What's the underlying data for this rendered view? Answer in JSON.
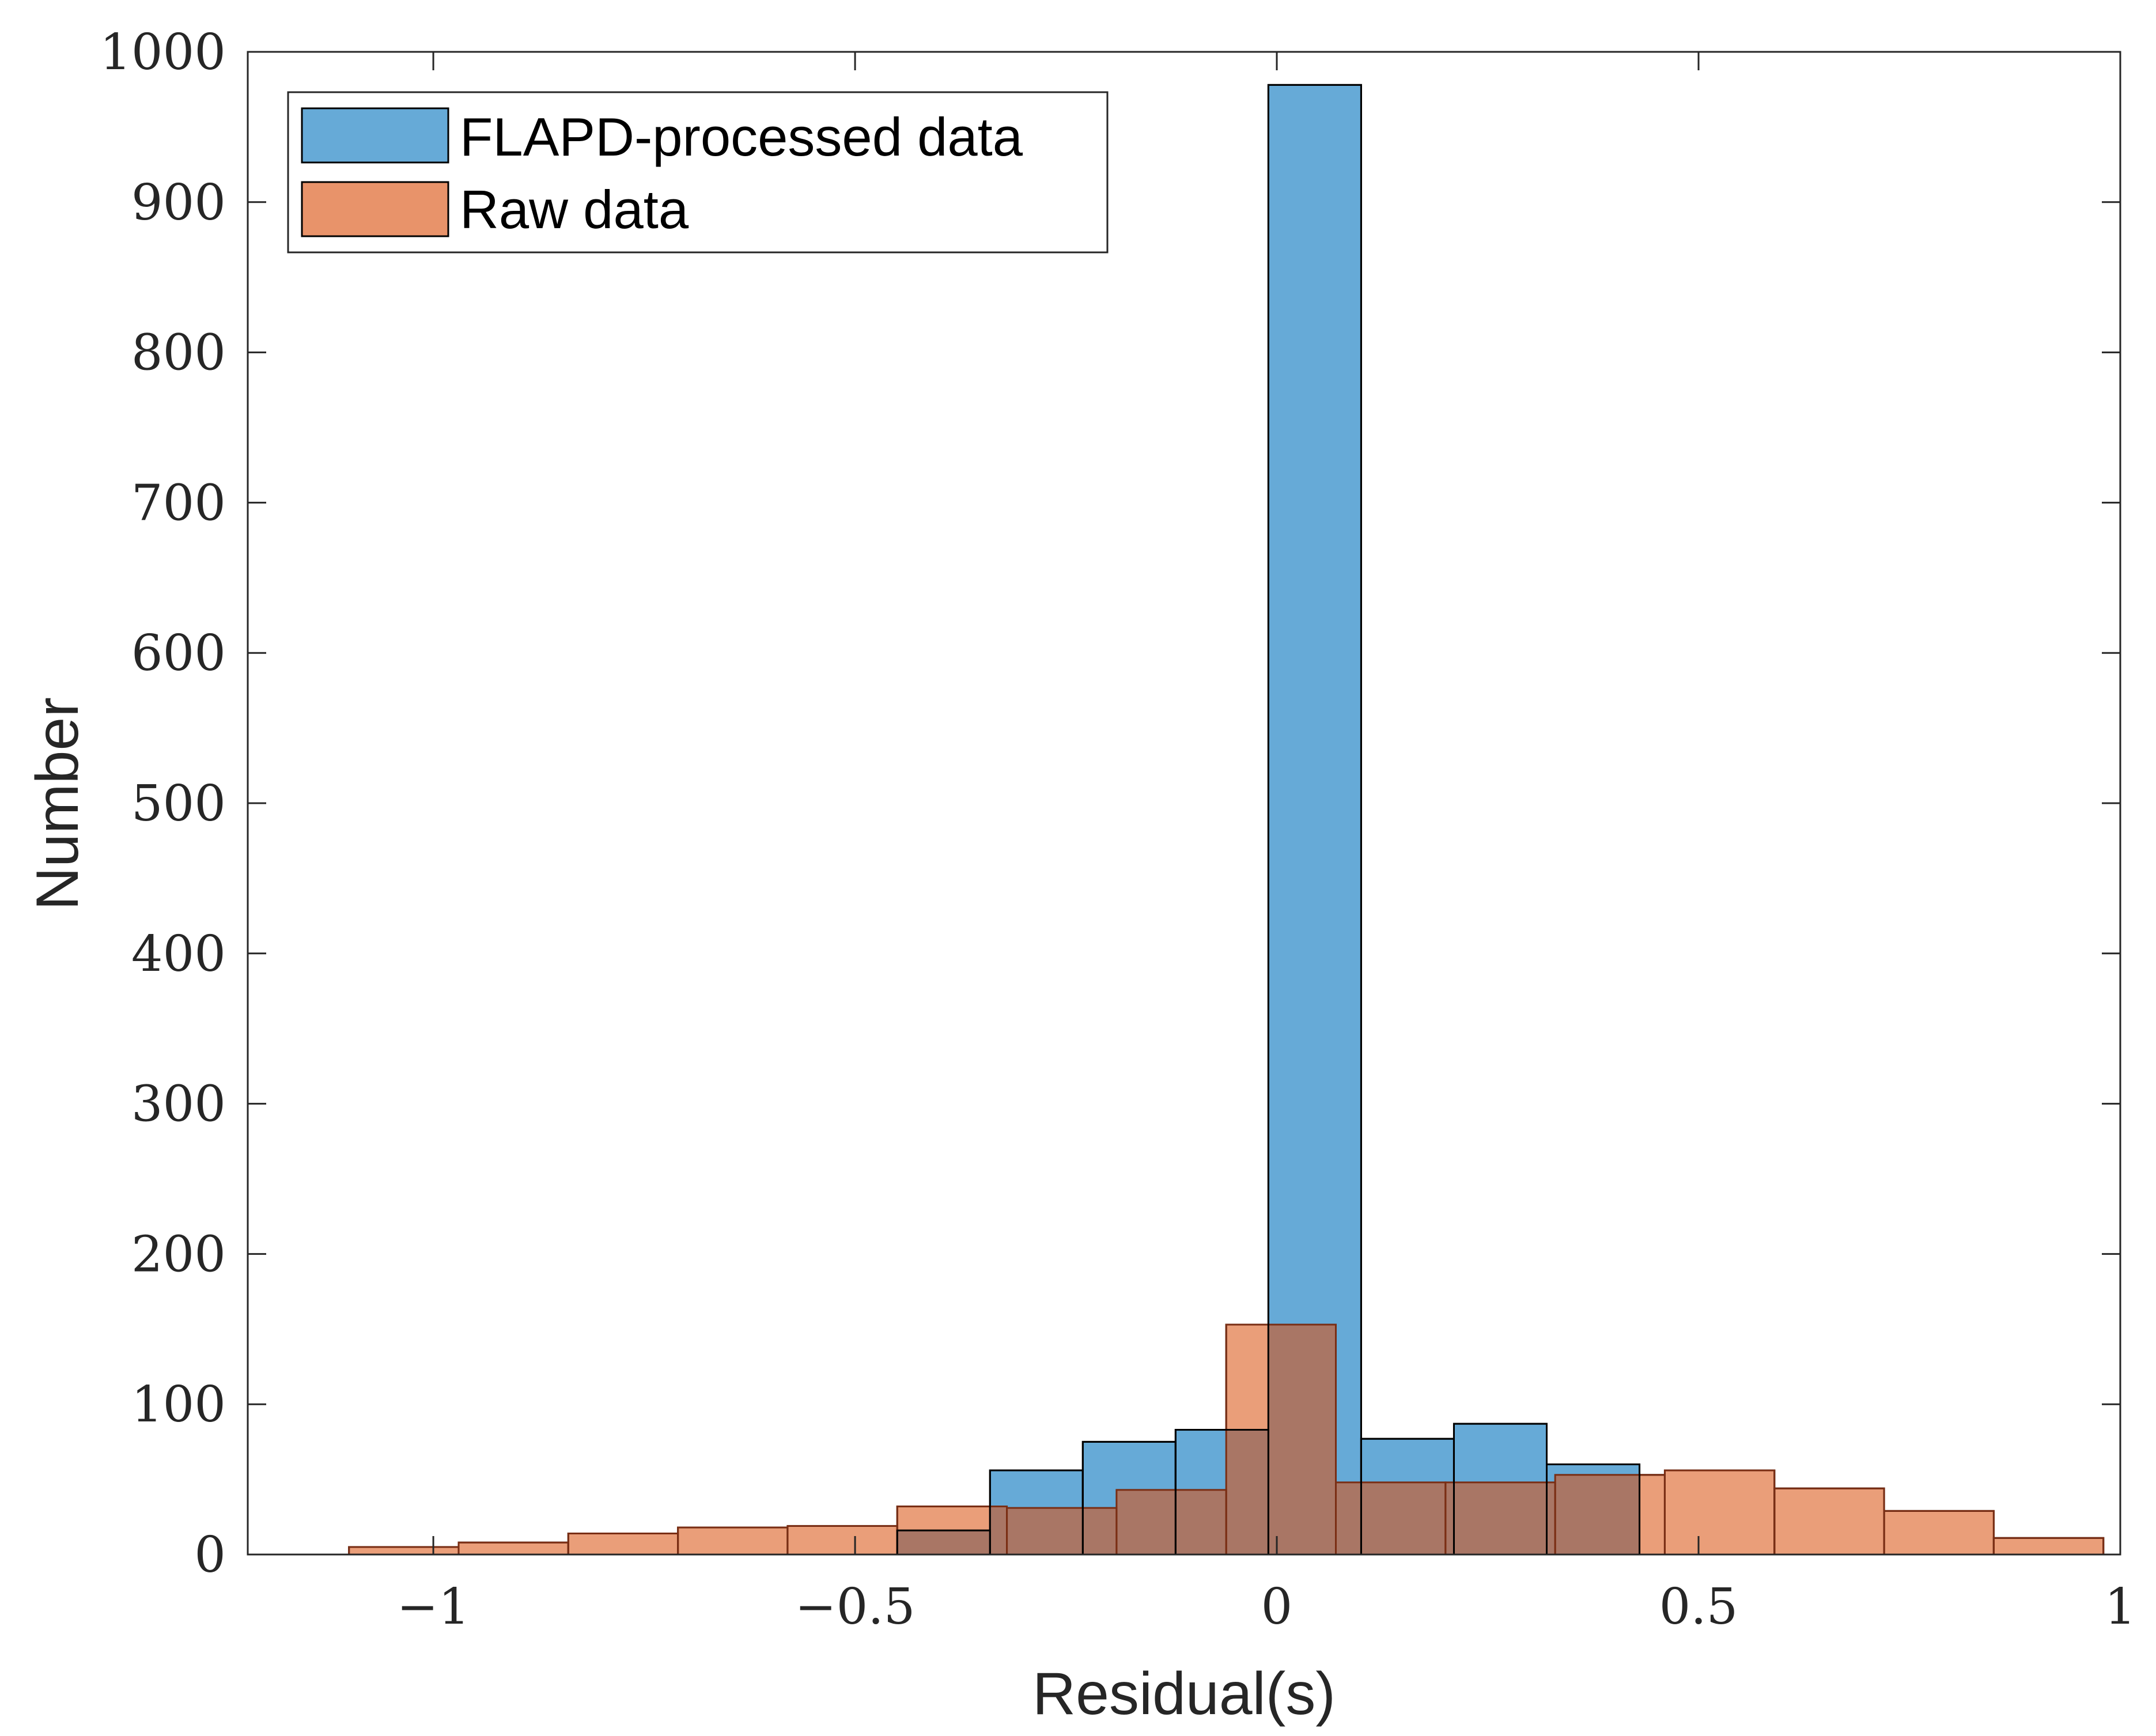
{
  "chart_data": {
    "type": "histogram",
    "title": "",
    "xlabel": "Residual(s)",
    "ylabel": "Number",
    "xlim": [
      -1.22,
      1.0
    ],
    "ylim": [
      0,
      1000
    ],
    "xticks": [
      -1,
      -0.5,
      0,
      0.5,
      1
    ],
    "xtick_labels": [
      "−1",
      "−0.5",
      "0",
      "0.5",
      "1"
    ],
    "yticks": [
      0,
      100,
      200,
      300,
      400,
      500,
      600,
      700,
      800,
      900,
      1000
    ],
    "ytick_labels": [
      "0",
      "100",
      "200",
      "300",
      "400",
      "500",
      "600",
      "700",
      "800",
      "900",
      "1000"
    ],
    "grid": false,
    "legend_position": "top-left",
    "series": [
      {
        "name": "Raw data",
        "color": "#E8936A",
        "opacity": 0.9,
        "bin_edges": [
          -1.1,
          -0.97,
          -0.84,
          -0.71,
          -0.58,
          -0.45,
          -0.32,
          -0.19,
          -0.06,
          0.07,
          0.2,
          0.33,
          0.46,
          0.59,
          0.72,
          0.85,
          0.98
        ],
        "counts": [
          5,
          8,
          14,
          18,
          19,
          32,
          31,
          43,
          153,
          48,
          48,
          53,
          56,
          44,
          29,
          11
        ]
      },
      {
        "name": "FLAPD-processed data",
        "color": "#66AAD7",
        "opacity": 1.0,
        "bin_edges": [
          -0.45,
          -0.34,
          -0.23,
          -0.12,
          -0.01,
          0.1,
          0.21,
          0.32,
          0.43
        ],
        "counts": [
          16,
          56,
          75,
          83,
          978,
          77,
          87,
          60
        ]
      }
    ],
    "legend": [
      "FLAPD-processed data",
      "Raw data"
    ]
  }
}
